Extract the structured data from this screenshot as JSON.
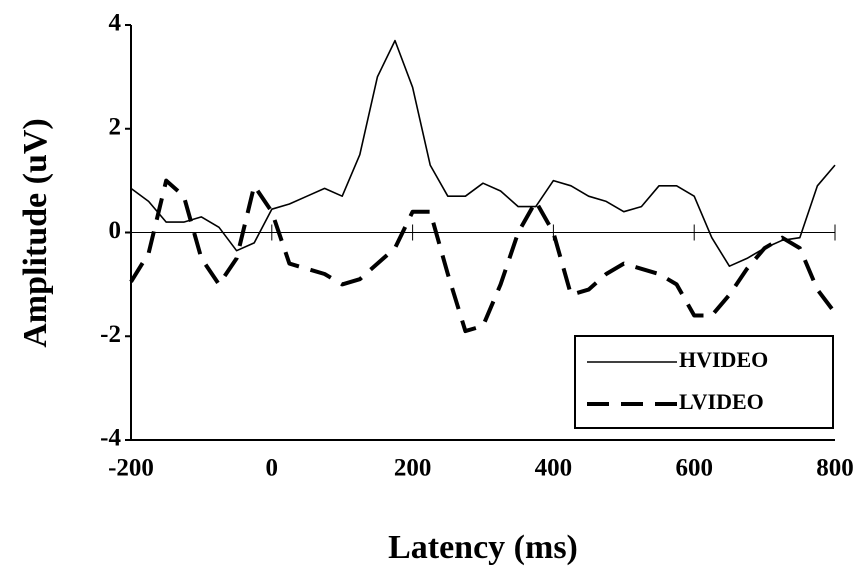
{
  "chart_data": {
    "type": "line",
    "xlabel": "Latency (ms)",
    "ylabel": "Amplitude (uV)",
    "x": [
      -200,
      -175,
      -150,
      -125,
      -100,
      -75,
      -50,
      -25,
      0,
      25,
      50,
      75,
      100,
      125,
      150,
      175,
      200,
      225,
      250,
      275,
      300,
      325,
      350,
      375,
      400,
      425,
      450,
      475,
      500,
      525,
      550,
      575,
      600,
      625,
      650,
      675,
      700,
      725,
      750,
      775,
      800
    ],
    "series": [
      {
        "name": "HVIDEO",
        "color": "#000000",
        "dash": "solid",
        "values": [
          0.85,
          0.6,
          0.2,
          0.2,
          0.3,
          0.1,
          -0.35,
          -0.2,
          0.45,
          0.55,
          0.7,
          0.85,
          0.7,
          1.5,
          3.0,
          3.7,
          2.8,
          1.3,
          0.7,
          0.7,
          0.95,
          0.8,
          0.5,
          0.5,
          1.0,
          0.9,
          0.7,
          0.6,
          0.4,
          0.5,
          0.9,
          0.9,
          0.7,
          -0.1,
          -0.65,
          -0.5,
          -0.3,
          -0.15,
          -0.1,
          0.9,
          1.3
        ]
      },
      {
        "name": "LVIDEO",
        "color": "#000000",
        "dash": "dashed",
        "values": [
          -0.95,
          -0.4,
          1.0,
          0.7,
          -0.5,
          -1.0,
          -0.5,
          0.9,
          0.4,
          -0.6,
          -0.7,
          -0.8,
          -1.0,
          -0.9,
          -0.6,
          -0.3,
          0.4,
          0.4,
          -0.8,
          -1.9,
          -1.8,
          -1.0,
          0.0,
          0.6,
          0.0,
          -1.2,
          -1.1,
          -0.8,
          -0.6,
          -0.7,
          -0.8,
          -1.0,
          -1.6,
          -1.6,
          -1.2,
          -0.7,
          -0.3,
          -0.1,
          -0.3,
          -1.1,
          -1.55
        ]
      }
    ],
    "xlim": [
      -200,
      800
    ],
    "xticks": [
      -200,
      0,
      200,
      400,
      600,
      800
    ],
    "ylim": [
      -4,
      4
    ],
    "yticks": [
      -4,
      -2,
      0,
      2,
      4
    ],
    "legend": "lower right"
  }
}
